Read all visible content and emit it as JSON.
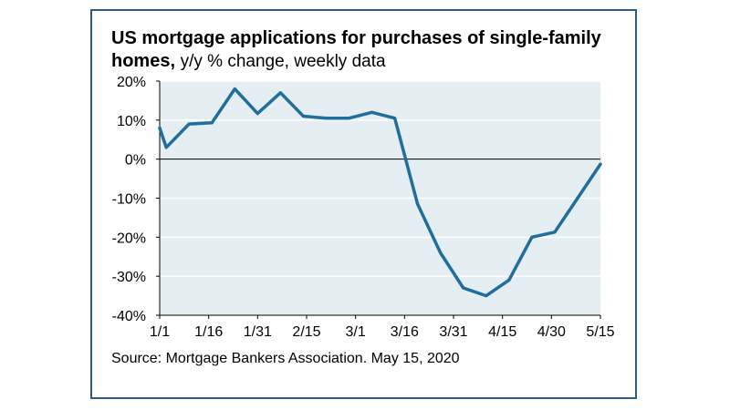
{
  "chart_data": {
    "type": "line",
    "title": "US mortgage applications for purchases of single-family homes,",
    "subtitle": "y/y % change, weekly data",
    "source": "Source: Mortgage Bankers Association. May 15, 2020",
    "xlabel": "",
    "ylabel": "",
    "x_tick_labels": [
      "1/1",
      "1/16",
      "1/31",
      "2/15",
      "3/1",
      "3/16",
      "3/31",
      "4/15",
      "4/30",
      "5/15"
    ],
    "y_tick_labels": [
      "20%",
      "10%",
      "0%",
      "-10%",
      "-20%",
      "-30%",
      "-40%"
    ],
    "y_ticks": [
      20,
      10,
      0,
      -10,
      -20,
      -30,
      -40
    ],
    "ylim": [
      -40,
      20
    ],
    "x_domain_days": [
      0,
      135
    ],
    "grid": "horizontal",
    "series": [
      {
        "color": "#1f6e9c",
        "x": [
          "1/1",
          "1/3",
          "1/10",
          "1/17",
          "1/24",
          "1/31",
          "2/7",
          "2/14",
          "2/21",
          "2/28",
          "3/6",
          "3/13",
          "3/20",
          "3/27",
          "4/3",
          "4/10",
          "4/17",
          "4/24",
          "5/1",
          "5/8",
          "5/15"
        ],
        "x_day": [
          0,
          2,
          9,
          16,
          23,
          30,
          37,
          44,
          51,
          58,
          65,
          72,
          79,
          86,
          93,
          100,
          107,
          114,
          121,
          128,
          135
        ],
        "values": [
          8,
          3,
          9,
          9.3,
          18,
          11.7,
          17,
          11,
          10.5,
          10.5,
          12,
          10.5,
          -11.5,
          -24,
          -33,
          -35,
          -31,
          -20,
          -18.7,
          -10,
          -1.3
        ]
      }
    ],
    "colors": {
      "frame": "#2e5a84",
      "plot_background": "#e4eef3",
      "line": "#1f6e9c",
      "gridline": "#ffffff"
    }
  }
}
